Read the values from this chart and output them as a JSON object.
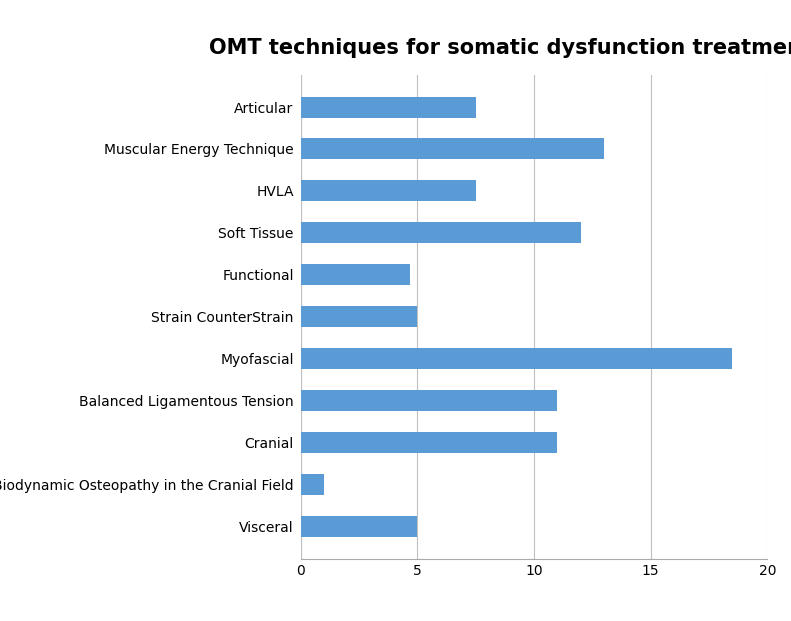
{
  "title": "OMT techniques for somatic dysfunction treatment (%)",
  "categories": [
    "Visceral",
    "Biodynamic Osteopathy in the Cranial Field",
    "Cranial",
    "Balanced Ligamentous Tension",
    "Myofascial",
    "Strain CounterStrain",
    "Functional",
    "Soft Tissue",
    "HVLA",
    "Muscular Energy Technique",
    "Articular"
  ],
  "values": [
    5.0,
    1.0,
    11.0,
    11.0,
    18.5,
    5.0,
    4.7,
    12.0,
    7.5,
    13.0,
    7.5
  ],
  "bar_color": "#5B9BD5",
  "xlim": [
    0,
    20
  ],
  "xticks": [
    0,
    5,
    10,
    15,
    20
  ],
  "title_fontsize": 15,
  "label_fontsize": 10,
  "tick_fontsize": 10,
  "background_color": "#ffffff",
  "grid_color": "#c0c0c0"
}
